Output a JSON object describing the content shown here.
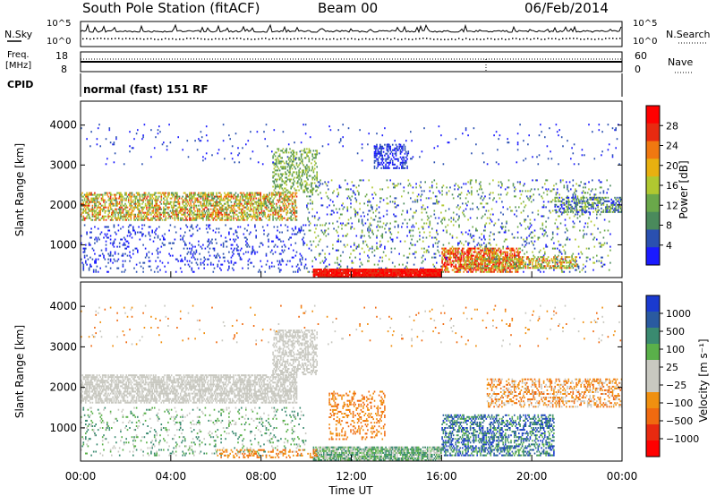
{
  "header": {
    "title": "South Pole Station (fitACF)",
    "beam": "Beam 00",
    "date": "06/Feb/2014"
  },
  "top_panels": {
    "nsky_label": "N.Sky",
    "nsearch_label": "N.Search",
    "nsky_ticks": [
      "10^5",
      "10^0"
    ],
    "nsearch_ticks": [
      "10^5",
      "10^0"
    ],
    "freq_label_1": "Freq.",
    "freq_label_2": "[MHz]",
    "freq_ticks": [
      "18",
      "8"
    ],
    "nave_label": "Nave",
    "nave_ticks": [
      "60",
      "0"
    ],
    "cpid_label": "CPID",
    "cpid_text": "normal (fast) 151 RF"
  },
  "colors": {
    "power_scale": [
      "#1a1aff",
      "#2a50b0",
      "#4a8a5c",
      "#6aa84a",
      "#b0c830",
      "#e8b010",
      "#f07810",
      "#e82a10",
      "#ff0000"
    ],
    "velocity_scale": [
      "#1a3ad0",
      "#2a5aa0",
      "#3a8a70",
      "#5ab04a",
      "#c8c8c0",
      "#c8c8c0",
      "#f09010",
      "#f06a10",
      "#e82a10",
      "#ff0000"
    ]
  },
  "chart_data": [
    {
      "type": "heatmap",
      "panel": "power",
      "ylabel": "Slant Range [km]",
      "ylim": [
        180,
        4600
      ],
      "yticks": [
        "1000",
        "2000",
        "3000",
        "4000"
      ],
      "xlim": [
        0,
        24
      ],
      "colorbar_label": "Power [dB]",
      "colorbar_ticks": [
        "4",
        "8",
        "12",
        "16",
        "20",
        "24",
        "28"
      ],
      "clim": [
        0,
        32
      ]
    },
    {
      "type": "heatmap",
      "panel": "velocity",
      "ylabel": "Slant Range [km]",
      "ylim": [
        180,
        4600
      ],
      "yticks": [
        "1000",
        "2000",
        "3000",
        "4000"
      ],
      "xlabel": "Time UT",
      "xticks": [
        "00:00",
        "04:00",
        "08:00",
        "12:00",
        "16:00",
        "20:00",
        "00:00"
      ],
      "xlim": [
        0,
        24
      ],
      "colorbar_label": "Velocity [m s⁻¹]",
      "colorbar_ticks": [
        "1000",
        "500",
        "100",
        "25",
        "−25",
        "−100",
        "−500",
        "−1000"
      ]
    }
  ]
}
